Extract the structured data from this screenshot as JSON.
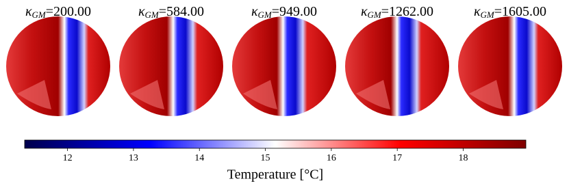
{
  "chart_data": {
    "type": "image-panels",
    "panel_titles": [
      {
        "symbol": "κ",
        "subscript": "GM",
        "text": "=200.00"
      },
      {
        "symbol": "κ",
        "subscript": "GM",
        "text": "=584.00"
      },
      {
        "symbol": "κ",
        "subscript": "GM",
        "text": "=949.00"
      },
      {
        "symbol": "κ",
        "subscript": "GM",
        "text": "=1262.00"
      },
      {
        "symbol": "κ",
        "subscript": "GM",
        "text": "=1605.00"
      }
    ],
    "colorbar": {
      "label": "Temperature [°C]",
      "lim": [
        11.35,
        18.95
      ],
      "ticks": [
        12,
        13,
        14,
        15,
        16,
        17,
        18
      ],
      "colormap": [
        "#00004c",
        "#0000ff",
        "#ffffff",
        "#ff0000",
        "#7f0000"
      ]
    }
  }
}
